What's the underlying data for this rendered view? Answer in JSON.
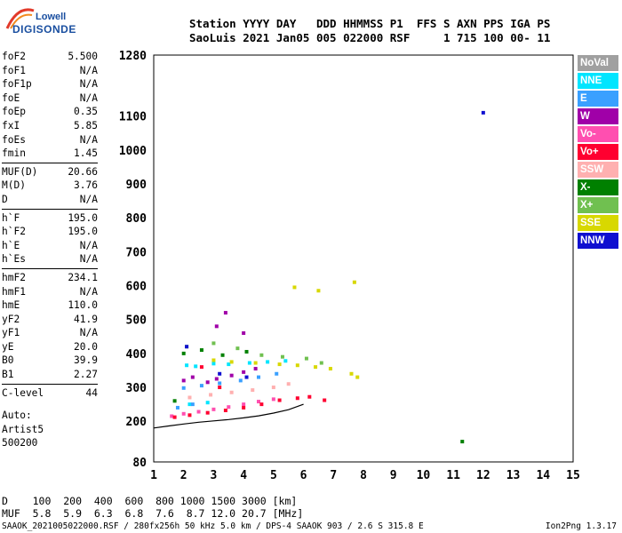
{
  "logo": {
    "top": "Lowell",
    "bottom": "DIGISONDE"
  },
  "header": {
    "line1": "Station YYYY DAY   DDD HHMMSS P1  FFS S AXN PPS IGA PS",
    "line2": "SaoLuis 2021 Jan05 005 022000 RSF     1 715 100 00- 11"
  },
  "params": [
    {
      "name": "foF2",
      "value": "5.500"
    },
    {
      "name": "foF1",
      "value": "N/A"
    },
    {
      "name": "foF1p",
      "value": "N/A"
    },
    {
      "name": "foE",
      "value": "N/A"
    },
    {
      "name": "foEp",
      "value": "0.35"
    },
    {
      "name": "fxI",
      "value": "5.85"
    },
    {
      "name": "foEs",
      "value": "N/A"
    },
    {
      "name": "fmin",
      "value": "1.45"
    },
    {
      "name": "MUF(D)",
      "value": "20.66"
    },
    {
      "name": "M(D)",
      "value": "3.76"
    },
    {
      "name": "D",
      "value": "N/A"
    },
    {
      "name": "h`F",
      "value": "195.0"
    },
    {
      "name": "h`F2",
      "value": "195.0"
    },
    {
      "name": "h`E",
      "value": "N/A"
    },
    {
      "name": "h`Es",
      "value": "N/A"
    },
    {
      "name": "hmF2",
      "value": "234.1"
    },
    {
      "name": "hmF1",
      "value": "N/A"
    },
    {
      "name": "hmE",
      "value": "110.0"
    },
    {
      "name": "yF2",
      "value": "41.9"
    },
    {
      "name": "yF1",
      "value": "N/A"
    },
    {
      "name": "yE",
      "value": "20.0"
    },
    {
      "name": "B0",
      "value": "39.9"
    },
    {
      "name": "B1",
      "value": "2.27"
    },
    {
      "name": "C-level",
      "value": "44"
    }
  ],
  "auto": {
    "label": "Auto:",
    "artist": "Artist5",
    "code": "500200"
  },
  "legend": [
    {
      "label": "NoVal",
      "color": "#a0a0a0",
      "text_color": "#ffffff"
    },
    {
      "label": "NNE",
      "color": "#00e5ff",
      "text_color": "#ffffff"
    },
    {
      "label": "E",
      "color": "#3aa0ff",
      "text_color": "#ffffff"
    },
    {
      "label": "W",
      "color": "#a000a8",
      "text_color": "#ffffff"
    },
    {
      "label": "Vo-",
      "color": "#ff4fb0",
      "text_color": "#ffffff"
    },
    {
      "label": "Vo+",
      "color": "#ff0030",
      "text_color": "#ffffff"
    },
    {
      "label": "SSW",
      "color": "#ffb0b0",
      "text_color": "#ffffff"
    },
    {
      "label": "X-",
      "color": "#008000",
      "text_color": "#ffffff"
    },
    {
      "label": "X+",
      "color": "#70c050",
      "text_color": "#ffffff"
    },
    {
      "label": "SSE",
      "color": "#d8d800",
      "text_color": "#ffffff"
    },
    {
      "label": "NNW",
      "color": "#1010d0",
      "text_color": "#ffffff"
    }
  ],
  "muf_table": {
    "row1": "D    100  200  400  600  800 1000 1500 3000 [km]",
    "row2": "MUF  5.8  5.9  6.3  6.8  7.6  8.7 12.0 20.7 [MHz]"
  },
  "footer": {
    "left": "SAAOK_2021005022000.RSF / 280fx256h 50 kHz 5.0 km / DPS-4 SAAOK 903 / 2.6 S 315.8 E",
    "right": "Ion2Png 1.3.17"
  },
  "chart_data": {
    "type": "scatter",
    "title": "",
    "xlabel": "",
    "ylabel": "",
    "xlim": [
      1,
      15
    ],
    "ylim": [
      80,
      1280
    ],
    "x_ticks": [
      1,
      2,
      3,
      4,
      5,
      6,
      7,
      8,
      9,
      10,
      11,
      12,
      13,
      14,
      15
    ],
    "y_ticks": [
      80,
      200,
      300,
      400,
      500,
      600,
      700,
      800,
      900,
      1000,
      1100,
      1280
    ],
    "grid": true,
    "series": [
      {
        "name": "NNE",
        "points": [
          [
            2.1,
            365
          ],
          [
            2.4,
            362
          ],
          [
            3.0,
            370
          ],
          [
            3.5,
            368
          ],
          [
            4.2,
            372
          ],
          [
            4.8,
            375
          ],
          [
            5.4,
            378
          ],
          [
            2.2,
            250
          ],
          [
            2.8,
            255
          ]
        ]
      },
      {
        "name": "E",
        "points": [
          [
            2.0,
            298
          ],
          [
            2.6,
            305
          ],
          [
            3.2,
            312
          ],
          [
            3.9,
            320
          ],
          [
            4.5,
            330
          ],
          [
            5.1,
            340
          ],
          [
            1.8,
            240
          ],
          [
            2.3,
            250
          ]
        ]
      },
      {
        "name": "W",
        "points": [
          [
            2.0,
            320
          ],
          [
            2.3,
            330
          ],
          [
            2.8,
            315
          ],
          [
            3.1,
            325
          ],
          [
            3.6,
            335
          ],
          [
            4.0,
            345
          ],
          [
            4.4,
            355
          ],
          [
            3.1,
            480
          ],
          [
            3.4,
            520
          ],
          [
            4.0,
            460
          ]
        ]
      },
      {
        "name": "Vo-",
        "points": [
          [
            1.6,
            215
          ],
          [
            2.0,
            222
          ],
          [
            2.5,
            228
          ],
          [
            3.0,
            235
          ],
          [
            3.5,
            242
          ],
          [
            4.0,
            250
          ],
          [
            4.5,
            258
          ],
          [
            5.0,
            265
          ]
        ]
      },
      {
        "name": "Vo+",
        "points": [
          [
            1.7,
            212
          ],
          [
            2.2,
            218
          ],
          [
            2.8,
            225
          ],
          [
            3.4,
            232
          ],
          [
            4.0,
            240
          ],
          [
            4.6,
            250
          ],
          [
            5.2,
            262
          ],
          [
            5.8,
            268
          ],
          [
            6.2,
            272
          ],
          [
            6.7,
            262
          ],
          [
            2.6,
            360
          ],
          [
            3.2,
            300
          ]
        ]
      },
      {
        "name": "SSW",
        "points": [
          [
            2.2,
            270
          ],
          [
            2.9,
            278
          ],
          [
            3.6,
            285
          ],
          [
            4.3,
            292
          ],
          [
            5.0,
            300
          ],
          [
            5.5,
            310
          ]
        ]
      },
      {
        "name": "X-",
        "points": [
          [
            2.0,
            400
          ],
          [
            2.6,
            410
          ],
          [
            3.3,
            395
          ],
          [
            4.1,
            405
          ],
          [
            11.3,
            140
          ],
          [
            1.7,
            260
          ]
        ]
      },
      {
        "name": "X+",
        "points": [
          [
            2.1,
            420
          ],
          [
            3.0,
            430
          ],
          [
            3.8,
            415
          ],
          [
            4.6,
            395
          ],
          [
            5.3,
            390
          ],
          [
            6.1,
            385
          ],
          [
            6.6,
            372
          ]
        ]
      },
      {
        "name": "SSE",
        "points": [
          [
            3.0,
            380
          ],
          [
            3.6,
            375
          ],
          [
            4.4,
            372
          ],
          [
            5.2,
            368
          ],
          [
            5.8,
            365
          ],
          [
            6.4,
            360
          ],
          [
            6.9,
            355
          ],
          [
            7.6,
            340
          ],
          [
            7.8,
            330
          ],
          [
            6.5,
            585
          ],
          [
            7.7,
            610
          ],
          [
            5.7,
            595
          ]
        ]
      },
      {
        "name": "NNW",
        "points": [
          [
            2.1,
            420
          ],
          [
            3.2,
            340
          ],
          [
            4.1,
            330
          ],
          [
            12.0,
            1110
          ]
        ]
      }
    ],
    "trace": [
      [
        1.0,
        180
      ],
      [
        1.5,
        186
      ],
      [
        2.0,
        192
      ],
      [
        2.5,
        197
      ],
      [
        3.0,
        201
      ],
      [
        3.5,
        205
      ],
      [
        4.0,
        210
      ],
      [
        4.5,
        216
      ],
      [
        5.0,
        224
      ],
      [
        5.5,
        234
      ],
      [
        6.0,
        250
      ]
    ]
  }
}
